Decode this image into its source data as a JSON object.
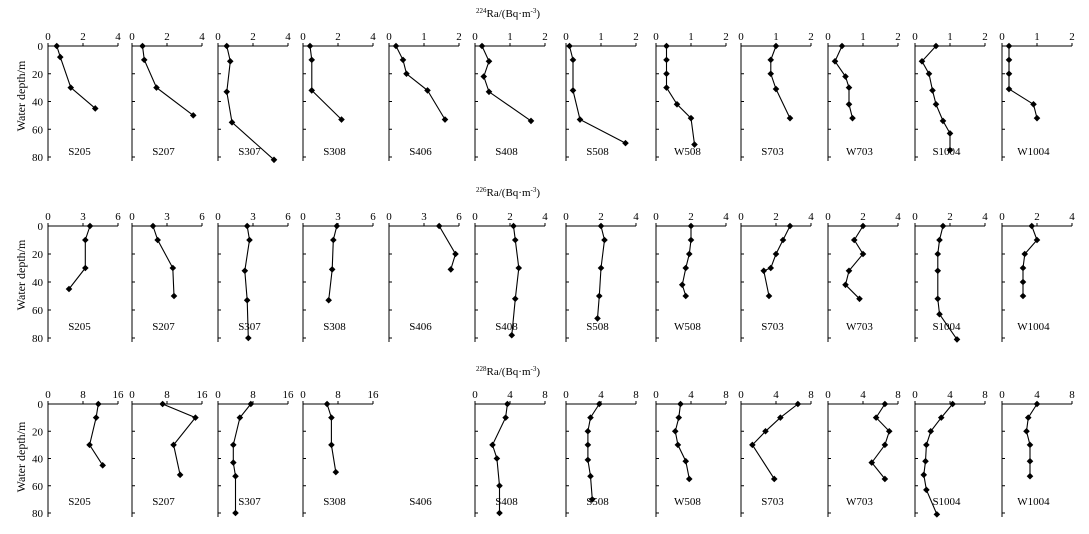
{
  "figure": {
    "y_axis_label": "Water depth/m",
    "y_ticks": [
      0,
      20,
      40,
      60,
      80
    ],
    "y_range": [
      0,
      80
    ],
    "row_titles": {
      "Ra224": {
        "pre": "224",
        "main": "Ra/(Bq·m",
        "sup": "-3",
        "post": ")"
      },
      "Ra226": {
        "pre": "226",
        "main": "Ra/(Bq·m",
        "sup": "-3",
        "post": ")"
      },
      "Ra228": {
        "pre": "228",
        "main": "Ra/(Bq·m",
        "sup": "-3",
        "post": ")"
      }
    }
  },
  "chart_data": [
    {
      "type": "line",
      "row": "Ra224",
      "station": "S205",
      "xlim": [
        0,
        4
      ],
      "xticks": [
        0,
        2,
        4
      ],
      "x": [
        0.5,
        0.7,
        1.3,
        2.7
      ],
      "y": [
        0,
        8,
        30,
        45
      ]
    },
    {
      "type": "line",
      "row": "Ra224",
      "station": "S207",
      "xlim": [
        0,
        4
      ],
      "xticks": [
        0,
        2,
        4
      ],
      "x": [
        0.6,
        0.7,
        1.4,
        3.5
      ],
      "y": [
        0,
        10,
        30,
        50
      ]
    },
    {
      "type": "line",
      "row": "Ra224",
      "station": "S307",
      "xlim": [
        0,
        4
      ],
      "xticks": [
        0,
        2,
        4
      ],
      "x": [
        0.5,
        0.7,
        0.5,
        0.8,
        3.2
      ],
      "y": [
        0,
        11,
        33,
        55,
        82
      ]
    },
    {
      "type": "line",
      "row": "Ra224",
      "station": "S308",
      "xlim": [
        0,
        4
      ],
      "xticks": [
        0,
        2,
        4
      ],
      "x": [
        0.4,
        0.5,
        0.5,
        2.2
      ],
      "y": [
        0,
        10,
        32,
        53
      ]
    },
    {
      "type": "line",
      "row": "Ra224",
      "station": "S406",
      "xlim": [
        0,
        2
      ],
      "xticks": [
        0,
        1,
        2
      ],
      "x": [
        0.2,
        0.4,
        0.5,
        1.1,
        1.6
      ],
      "y": [
        0,
        10,
        20,
        32,
        53
      ]
    },
    {
      "type": "line",
      "row": "Ra224",
      "station": "S408",
      "xlim": [
        0,
        2
      ],
      "xticks": [
        0,
        1,
        2
      ],
      "x": [
        0.2,
        0.4,
        0.25,
        0.4,
        1.6
      ],
      "y": [
        0,
        11,
        22,
        33,
        54
      ]
    },
    {
      "type": "line",
      "row": "Ra224",
      "station": "S508",
      "xlim": [
        0,
        2
      ],
      "xticks": [
        0,
        1,
        2
      ],
      "x": [
        0.1,
        0.2,
        0.2,
        0.4,
        1.7
      ],
      "y": [
        0,
        10,
        32,
        53,
        70
      ]
    },
    {
      "type": "line",
      "row": "Ra224",
      "station": "W508",
      "xlim": [
        0,
        2
      ],
      "xticks": [
        0,
        1,
        2
      ],
      "x": [
        0.3,
        0.3,
        0.3,
        0.3,
        0.6,
        1.0,
        1.1
      ],
      "y": [
        0,
        10,
        20,
        30,
        42,
        52,
        71
      ]
    },
    {
      "type": "line",
      "row": "Ra224",
      "station": "S703",
      "xlim": [
        0,
        2
      ],
      "xticks": [
        0,
        1,
        2
      ],
      "x": [
        1.0,
        0.85,
        0.85,
        1.0,
        1.4
      ],
      "y": [
        0,
        10,
        20,
        31,
        52
      ]
    },
    {
      "type": "line",
      "row": "Ra224",
      "station": "W703",
      "xlim": [
        0,
        2
      ],
      "xticks": [
        0,
        1,
        2
      ],
      "x": [
        0.4,
        0.2,
        0.5,
        0.6,
        0.6,
        0.7
      ],
      "y": [
        0,
        11,
        22,
        30,
        42,
        52
      ]
    },
    {
      "type": "line",
      "row": "Ra224",
      "station": "S1004",
      "xlim": [
        0,
        2
      ],
      "xticks": [
        0,
        1,
        2
      ],
      "x": [
        0.6,
        0.2,
        0.4,
        0.5,
        0.6,
        0.8,
        1.0,
        1.0
      ],
      "y": [
        0,
        11,
        20,
        32,
        42,
        54,
        63,
        75
      ]
    },
    {
      "type": "line",
      "row": "Ra224",
      "station": "W1004",
      "xlim": [
        0,
        2
      ],
      "xticks": [
        0,
        1,
        2
      ],
      "x": [
        0.2,
        0.2,
        0.2,
        0.2,
        0.9,
        1.0
      ],
      "y": [
        0,
        10,
        20,
        31,
        42,
        52
      ]
    },
    {
      "type": "line",
      "row": "Ra226",
      "station": "S205",
      "xlim": [
        0,
        6
      ],
      "xticks": [
        0,
        3,
        6
      ],
      "x": [
        3.6,
        3.2,
        3.2,
        1.8
      ],
      "y": [
        0,
        10,
        30,
        45
      ]
    },
    {
      "type": "line",
      "row": "Ra226",
      "station": "S207",
      "xlim": [
        0,
        6
      ],
      "xticks": [
        0,
        3,
        6
      ],
      "x": [
        1.8,
        2.2,
        3.5,
        3.6
      ],
      "y": [
        0,
        10,
        30,
        50
      ]
    },
    {
      "type": "line",
      "row": "Ra226",
      "station": "S307",
      "xlim": [
        0,
        6
      ],
      "xticks": [
        0,
        3,
        6
      ],
      "x": [
        2.5,
        2.7,
        2.3,
        2.5,
        2.6
      ],
      "y": [
        0,
        10,
        32,
        53,
        80
      ]
    },
    {
      "type": "line",
      "row": "Ra226",
      "station": "S308",
      "xlim": [
        0,
        6
      ],
      "xticks": [
        0,
        3,
        6
      ],
      "x": [
        2.9,
        2.6,
        2.5,
        2.2
      ],
      "y": [
        0,
        10,
        31,
        53
      ]
    },
    {
      "type": "line",
      "row": "Ra226",
      "station": "S406",
      "xlim": [
        0,
        6
      ],
      "xticks": [
        0,
        3,
        6
      ],
      "x": [
        4.3,
        5.7,
        5.3
      ],
      "y": [
        0,
        20,
        31
      ]
    },
    {
      "type": "line",
      "row": "Ra226",
      "station": "S408",
      "xlim": [
        0,
        4
      ],
      "xticks": [
        0,
        2,
        4
      ],
      "x": [
        2.2,
        2.3,
        2.5,
        2.3,
        2.1
      ],
      "y": [
        0,
        10,
        30,
        52,
        78
      ]
    },
    {
      "type": "line",
      "row": "Ra226",
      "station": "S508",
      "xlim": [
        0,
        4
      ],
      "xticks": [
        0,
        2,
        4
      ],
      "x": [
        2.0,
        2.2,
        2.0,
        1.9,
        1.8
      ],
      "y": [
        0,
        10,
        30,
        50,
        66
      ]
    },
    {
      "type": "line",
      "row": "Ra226",
      "station": "W508",
      "xlim": [
        0,
        4
      ],
      "xticks": [
        0,
        2,
        4
      ],
      "x": [
        2.0,
        2.0,
        1.9,
        1.7,
        1.5,
        1.7
      ],
      "y": [
        0,
        10,
        20,
        30,
        42,
        50
      ]
    },
    {
      "type": "line",
      "row": "Ra226",
      "station": "S703",
      "xlim": [
        0,
        4
      ],
      "xticks": [
        0,
        2,
        4
      ],
      "x": [
        2.8,
        2.4,
        2.0,
        1.7,
        1.3,
        1.6
      ],
      "y": [
        0,
        10,
        20,
        30,
        32,
        50
      ]
    },
    {
      "type": "line",
      "row": "Ra226",
      "station": "W703",
      "xlim": [
        0,
        4
      ],
      "xticks": [
        0,
        2,
        4
      ],
      "x": [
        2.0,
        1.5,
        2.0,
        1.2,
        1.0,
        1.8
      ],
      "y": [
        0,
        10,
        20,
        32,
        42,
        52
      ]
    },
    {
      "type": "line",
      "row": "Ra226",
      "station": "S1004",
      "xlim": [
        0,
        4
      ],
      "xticks": [
        0,
        2,
        4
      ],
      "x": [
        1.6,
        1.4,
        1.3,
        1.3,
        1.3,
        1.4,
        2.4
      ],
      "y": [
        0,
        10,
        20,
        32,
        52,
        63,
        81
      ]
    },
    {
      "type": "line",
      "row": "Ra226",
      "station": "W1004",
      "xlim": [
        0,
        4
      ],
      "xticks": [
        0,
        2,
        4
      ],
      "x": [
        1.7,
        2.0,
        1.3,
        1.2,
        1.2,
        1.2
      ],
      "y": [
        0,
        10,
        20,
        30,
        40,
        50
      ]
    },
    {
      "type": "line",
      "row": "Ra228",
      "station": "S205",
      "xlim": [
        0,
        16
      ],
      "xticks": [
        0,
        8,
        16
      ],
      "x": [
        11.5,
        11.0,
        9.5,
        12.5
      ],
      "y": [
        0,
        10,
        30,
        45
      ]
    },
    {
      "type": "line",
      "row": "Ra228",
      "station": "S207",
      "xlim": [
        0,
        16
      ],
      "xticks": [
        0,
        8,
        16
      ],
      "x": [
        7.0,
        14.5,
        9.5,
        11.0
      ],
      "y": [
        0,
        10,
        30,
        52
      ]
    },
    {
      "type": "line",
      "row": "Ra228",
      "station": "S307",
      "xlim": [
        0,
        16
      ],
      "xticks": [
        0,
        8,
        16
      ],
      "x": [
        7.5,
        5.0,
        3.5,
        3.5,
        4.0,
        4.0
      ],
      "y": [
        0,
        10,
        30,
        43,
        53,
        80
      ]
    },
    {
      "type": "line",
      "row": "Ra228",
      "station": "S308",
      "xlim": [
        0,
        16
      ],
      "xticks": [
        0,
        8,
        16
      ],
      "x": [
        5.5,
        6.5,
        6.5,
        7.5
      ],
      "y": [
        0,
        10,
        30,
        50
      ]
    },
    {
      "type": "line",
      "row": "Ra228",
      "station": "S408",
      "xlim": [
        0,
        8
      ],
      "xticks": [
        0,
        4,
        8
      ],
      "x": [
        3.7,
        3.5,
        2.0,
        2.5,
        2.8,
        2.8
      ],
      "y": [
        0,
        10,
        30,
        40,
        60,
        80
      ]
    },
    {
      "type": "line",
      "row": "Ra228",
      "station": "S508",
      "xlim": [
        0,
        8
      ],
      "xticks": [
        0,
        4,
        8
      ],
      "x": [
        3.8,
        2.8,
        2.5,
        2.5,
        2.5,
        2.8,
        3.0
      ],
      "y": [
        0,
        10,
        20,
        30,
        41,
        53,
        70
      ]
    },
    {
      "type": "line",
      "row": "Ra228",
      "station": "W508",
      "xlim": [
        0,
        8
      ],
      "xticks": [
        0,
        4,
        8
      ],
      "x": [
        2.8,
        2.6,
        2.2,
        2.5,
        3.4,
        3.8
      ],
      "y": [
        0,
        10,
        20,
        30,
        42,
        55
      ]
    },
    {
      "type": "line",
      "row": "Ra228",
      "station": "S703",
      "xlim": [
        0,
        8
      ],
      "xticks": [
        0,
        4,
        8
      ],
      "x": [
        6.5,
        4.5,
        2.8,
        1.3,
        3.8
      ],
      "y": [
        0,
        10,
        20,
        30,
        55
      ]
    },
    {
      "type": "line",
      "row": "Ra228",
      "station": "W703",
      "xlim": [
        0,
        8
      ],
      "xticks": [
        0,
        4,
        8
      ],
      "x": [
        6.5,
        5.5,
        7.0,
        6.5,
        5.0,
        6.5
      ],
      "y": [
        0,
        10,
        20,
        30,
        43,
        55
      ]
    },
    {
      "type": "line",
      "row": "Ra228",
      "station": "S1004",
      "xlim": [
        0,
        8
      ],
      "xticks": [
        0,
        4,
        8
      ],
      "x": [
        4.3,
        3.0,
        1.8,
        1.3,
        1.2,
        1.0,
        1.3,
        2.5
      ],
      "y": [
        0,
        10,
        20,
        30,
        42,
        52,
        63,
        81
      ]
    },
    {
      "type": "line",
      "row": "Ra228",
      "station": "W1004",
      "xlim": [
        0,
        8
      ],
      "xticks": [
        0,
        4,
        8
      ],
      "x": [
        4.0,
        3.0,
        2.8,
        3.2,
        3.2,
        3.2
      ],
      "y": [
        0,
        10,
        20,
        30,
        42,
        53
      ]
    }
  ],
  "empty_panels": [
    {
      "row": "Ra228",
      "station": "S406"
    }
  ]
}
